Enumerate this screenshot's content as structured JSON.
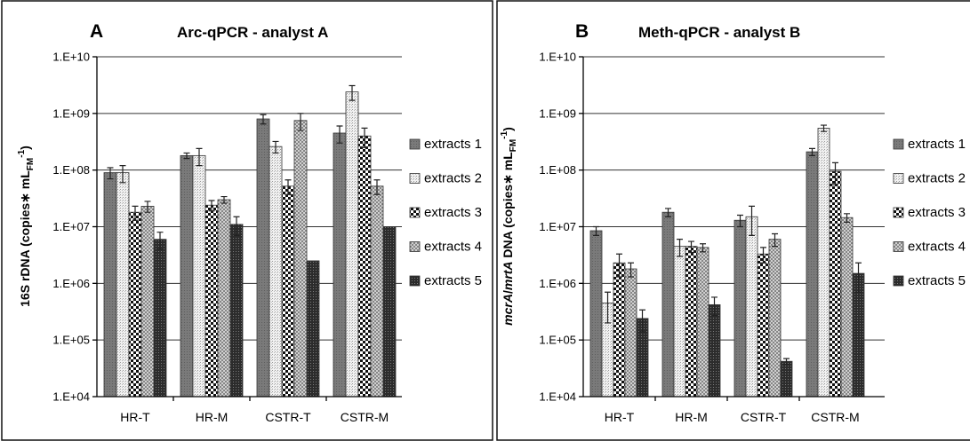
{
  "figure": {
    "patterns": [
      "dark-gray",
      "light-dots",
      "checker",
      "crosshatch",
      "dark-dots"
    ],
    "colors": {
      "extracts1": "#7a7a7a",
      "extracts5": "#2c2c2c",
      "grid": "#333333",
      "frame": "#111111"
    }
  },
  "chart_data": [
    {
      "type": "bar",
      "panel_label": "A",
      "title": "Arc-qPCR - analyst A",
      "xlabel": "",
      "ylabel_parts": [
        "16S rDNA (copies",
        "∗",
        " mL",
        "FM",
        "-1",
        ")"
      ],
      "yscale": "log",
      "ylim": [
        10000,
        10000000000
      ],
      "yticks": [
        "1.E+04",
        "1.E+05",
        "1.E+06",
        "1.E+07",
        "1.E+08",
        "1.E+09",
        "1.E+10"
      ],
      "grid": true,
      "legend_position": "right",
      "categories": [
        "HR-T",
        "HR-M",
        "CSTR-T",
        "CSTR-M"
      ],
      "series": [
        {
          "name": "extracts 1",
          "values": [
            90000000,
            180000000,
            800000000,
            450000000
          ],
          "errors": [
            20000000,
            20000000,
            150000000,
            150000000
          ]
        },
        {
          "name": "extracts 2",
          "values": [
            90000000,
            180000000,
            260000000,
            2400000000
          ],
          "errors": [
            30000000,
            60000000,
            60000000,
            700000000
          ]
        },
        {
          "name": "extracts 3",
          "values": [
            18000000,
            24000000,
            52000000,
            400000000
          ],
          "errors": [
            5000000,
            5000000,
            15000000,
            150000000
          ]
        },
        {
          "name": "extracts 4",
          "values": [
            23000000,
            30000000,
            750000000,
            52000000
          ],
          "errors": [
            5000000,
            4000000,
            250000000,
            15000000
          ]
        },
        {
          "name": "extracts 5",
          "values": [
            6000000,
            11000000,
            2500000,
            10000000
          ],
          "errors": [
            2000000,
            4000000,
            0,
            0
          ]
        }
      ]
    },
    {
      "type": "bar",
      "panel_label": "B",
      "title": "Meth-qPCR - analyst B",
      "xlabel": "",
      "ylabel_parts": [
        "",
        "mcrA",
        "/",
        "mrtA",
        " DNA (copies",
        "∗",
        " mL",
        "FM",
        "-1",
        ")"
      ],
      "yscale": "log",
      "ylim": [
        10000,
        10000000000
      ],
      "yticks": [
        "1.E+04",
        "1.E+05",
        "1.E+06",
        "1.E+07",
        "1.E+08",
        "1.E+09",
        "1.E+10"
      ],
      "grid": true,
      "legend_position": "right",
      "categories": [
        "HR-T",
        "HR-M",
        "CSTR-T",
        "CSTR-M"
      ],
      "series": [
        {
          "name": "extracts 1",
          "values": [
            8500000,
            18000000,
            13000000,
            210000000
          ],
          "errors": [
            1500000,
            3000000,
            3000000,
            30000000
          ]
        },
        {
          "name": "extracts 2",
          "values": [
            450000,
            4500000,
            15000000,
            550000000
          ],
          "errors": [
            250000,
            1500000,
            8000000,
            70000000
          ]
        },
        {
          "name": "extracts 3",
          "values": [
            2300000,
            4500000,
            3300000,
            95000000
          ],
          "errors": [
            1000000,
            1000000,
            1000000,
            40000000
          ]
        },
        {
          "name": "extracts 4",
          "values": [
            1800000,
            4300000,
            6000000,
            14500000
          ],
          "errors": [
            500000,
            700000,
            1500000,
            2500000
          ]
        },
        {
          "name": "extracts 5",
          "values": [
            240000,
            420000,
            42000,
            1500000
          ],
          "errors": [
            100000,
            150000,
            5000,
            800000
          ]
        }
      ]
    }
  ]
}
